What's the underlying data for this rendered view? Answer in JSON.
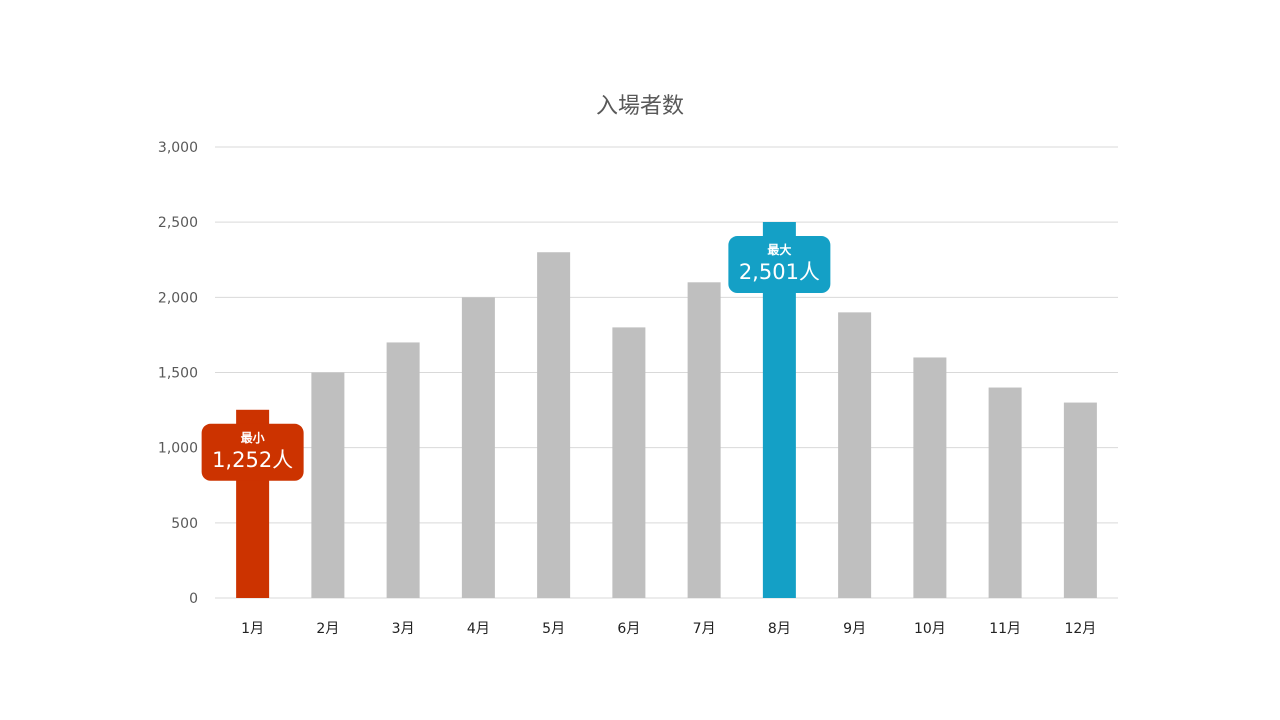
{
  "chart_data": {
    "type": "bar",
    "title": "入場者数",
    "categories": [
      "1月",
      "2月",
      "3月",
      "4月",
      "5月",
      "6月",
      "7月",
      "8月",
      "9月",
      "10月",
      "11月",
      "12月"
    ],
    "values": [
      1252,
      1500,
      1700,
      2000,
      2300,
      1800,
      2100,
      2501,
      1900,
      1600,
      1400,
      1300
    ],
    "ylim": [
      0,
      3000
    ],
    "yticks": [
      "0",
      "500",
      "1,000",
      "1,500",
      "2,000",
      "2,500",
      "3,000"
    ],
    "grid": true,
    "legend": "none",
    "colors": {
      "default": "#bfbfbf",
      "min": "#cc3300",
      "max": "#14a0c6"
    },
    "annotations": [
      {
        "type": "min",
        "category_index": 0,
        "label": "最小",
        "value_text": "1,252人"
      },
      {
        "type": "max",
        "category_index": 7,
        "label": "最大",
        "value_text": "2,501人"
      }
    ]
  }
}
